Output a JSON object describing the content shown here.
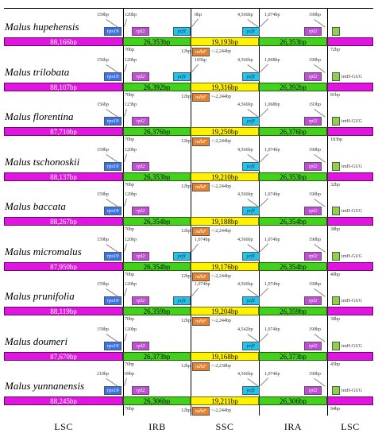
{
  "regions": [
    "LSC",
    "IRB",
    "SSC",
    "IRA",
    "LSC"
  ],
  "colors": {
    "lsc": "#e016e0",
    "ir": "#44d11b",
    "ssc": "#fff200",
    "rps19": "#3b74e8",
    "rpl2": "#c24ed8",
    "ycf1": "#1fc4f0",
    "ndhF": "#e8812b",
    "trnH": "#8fd14a"
  },
  "species": [
    {
      "name": "Malus hupehensis",
      "lsc": "88,166bp",
      "irb": "26,353bp",
      "ssc": "19,193bp",
      "ira": "26,353bp",
      "top_labels": {
        "rps19": "159bp",
        "rpl2_left": "120bp",
        "ycf1_left": "0bp",
        "ycf1_right": "4,566bp",
        "ycf1_ira": "1,074bp",
        "rpl2_right": "190bp"
      },
      "bottom_labels": {
        "irb": "70bp",
        "ndhF_gap": "12bp",
        "ndhF": "2,244bp",
        "trnH": "72bp"
      },
      "genes": {
        "rps19": "rps19",
        "rpl2": "rpl2",
        "ycf1_ps": "ycf1",
        "ycf1": "ycf1",
        "ndhF": "ndhF",
        "trnH": ""
      }
    },
    {
      "name": "Malus trilobata",
      "lsc": "88,107bp",
      "irb": "26,392bp",
      "ssc": "19,316bp",
      "ira": "26,392bp",
      "top_labels": {
        "rps19": "156bp",
        "rpl2_left": "120bp",
        "ycf1_left": "105bp",
        "ycf1_right": "4,566bp",
        "ycf1_ira": "1,068bp",
        "rpl2_right": "190bp"
      },
      "bottom_labels": {
        "irb": "70bp",
        "ndhF_gap": "12bp",
        "ndhF": "2,244bp",
        "trnH": "81bp"
      },
      "genes": {
        "rps19": "rps19",
        "rpl2": "rpl2",
        "ycf1_ps": "ycf1",
        "ycf1": "ycf1",
        "ndhF": "ndhF",
        "trnH": "trnH-GUG"
      }
    },
    {
      "name": "Malus florentina",
      "lsc": "87,710bp",
      "irb": "26,376bp",
      "ssc": "19,250bp",
      "ira": "26,376bp",
      "top_labels": {
        "rps19": "156bp",
        "rpl2_left": "123bp",
        "ycf1_left": "",
        "ycf1_right": "4,566bp",
        "ycf1_ira": "1,068bp",
        "rpl2_right": "193bp"
      },
      "bottom_labels": {
        "irb": "70bp",
        "ndhF_gap": "12bp",
        "ndhF": "2,244bp",
        "trnH": "183bp"
      },
      "genes": {
        "rps19": "rps19",
        "rpl2": "rpl2",
        "ycf1_ps": "",
        "ycf1": "ycf1",
        "ndhF": "ndhF",
        "trnH": "trnH-GUG"
      }
    },
    {
      "name": "Malus tschonoskii",
      "lsc": "88,137bp",
      "irb": "26,353bp",
      "ssc": "19,210bp",
      "ira": "26,353bp",
      "top_labels": {
        "rps19": "159bp",
        "rpl2_left": "120bp",
        "ycf1_left": "",
        "ycf1_right": "4,566bp",
        "ycf1_ira": "1,074bp",
        "rpl2_right": "190bp"
      },
      "bottom_labels": {
        "irb": "70bp",
        "ndhF_gap": "12bp",
        "ndhF": "2,244bp",
        "trnH": "32bp"
      },
      "genes": {
        "rps19": "rps19",
        "rpl2": "rpl2",
        "ycf1_ps": "",
        "ycf1": "ycf1",
        "ndhF": "ndhF",
        "trnH": "trnH-GUG"
      }
    },
    {
      "name": "Malus baccata",
      "lsc": "88,267bp",
      "irb": "26,354bp",
      "ssc": "19,188bp",
      "ira": "26,354bp",
      "top_labels": {
        "rps19": "159bp",
        "rpl2_left": "120bp",
        "ycf1_left": "",
        "ycf1_right": "4,566bp",
        "ycf1_ira": "1,074bp",
        "rpl2_right": "190bp"
      },
      "bottom_labels": {
        "irb": "70bp",
        "ndhF_gap": "12bp",
        "ndhF": "2,244bp",
        "trnH": "38bp"
      },
      "genes": {
        "rps19": "rps19",
        "rpl2": "rpl2",
        "ycf1_ps": "",
        "ycf1": "ycf1",
        "ndhF": "ndhF",
        "trnH": "trnH-GUG"
      }
    },
    {
      "name": "Malus micromalus",
      "lsc": "87,950bp",
      "irb": "26,354bp",
      "ssc": "19,176bp",
      "ira": "26,354bp",
      "top_labels": {
        "rps19": "159bp",
        "rpl2_left": "120bp",
        "ycf1_left": "1,074bp",
        "ycf1_right": "4,566bp",
        "ycf1_ira": "1,074bp",
        "rpl2_right": "190bp"
      },
      "bottom_labels": {
        "irb": "70bp",
        "ndhF_gap": "12bp",
        "ndhF": "2,244bp",
        "trnH": "40bp"
      },
      "genes": {
        "rps19": "rps19",
        "rpl2": "rpl2",
        "ycf1_ps": "ycf1",
        "ycf1": "ycf1",
        "ndhF": "ndhF",
        "trnH": "trnH-GUG"
      }
    },
    {
      "name": "Malus prunifolia",
      "lsc": "88,119bp",
      "irb": "26,359bp",
      "ssc": "19,204bp",
      "ira": "26,359bp",
      "top_labels": {
        "rps19": "159bp",
        "rpl2_left": "120bp",
        "ycf1_left": "1,074bp",
        "ycf1_right": "4,566bp",
        "ycf1_ira": "1,074bp",
        "rpl2_right": "190bp"
      },
      "bottom_labels": {
        "irb": "70bp",
        "ndhF_gap": "12bp",
        "ndhF": "2,244bp",
        "trnH": "38bp"
      },
      "genes": {
        "rps19": "rps19",
        "rpl2": "rpl2",
        "ycf1_ps": "ycf1",
        "ycf1": "ycf1",
        "ndhF": "ndhF",
        "trnH": "trnH-GUG"
      }
    },
    {
      "name": "Malus doumeri",
      "lsc": "87,670bp",
      "irb": "26,373bp",
      "ssc": "19,168bp",
      "ira": "26,373bp",
      "top_labels": {
        "rps19": "159bp",
        "rpl2_left": "120bp",
        "ycf1_left": "",
        "ycf1_right": "4,542bp",
        "ycf1_ira": "1,074bp",
        "rpl2_right": "190bp"
      },
      "bottom_labels": {
        "irb": "70bp",
        "ndhF_gap": "12bp",
        "ndhF": "2,238bp",
        "trnH": "45bp"
      },
      "genes": {
        "rps19": "rps19",
        "rpl2": "rpl2",
        "ycf1_ps": "",
        "ycf1": "ycf1",
        "ndhF": "ndhF",
        "trnH": "trnH-GUG"
      }
    },
    {
      "name": "Malus yunnanensis",
      "lsc": "88,245bp",
      "irb": "26,306bp",
      "ssc": "19,211bp",
      "ira": "26,306bp",
      "top_labels": {
        "rps19": "210bp",
        "rpl2_left": "69bp",
        "ycf1_left": "",
        "ycf1_right": "4,566bp",
        "ycf1_ira": "1,074bp",
        "rpl2_right": "190bp"
      },
      "bottom_labels": {
        "irb": "70bp",
        "ndhF_gap": "12bp",
        "ndhF": "2,244bp",
        "trnH": "94bp"
      },
      "genes": {
        "rps19": "rps19",
        "rpl2": "rpl2",
        "ycf1_ps": "",
        "ycf1": "ycf1",
        "ndhF": "ndhF",
        "trnH": "trnH-GUG"
      }
    }
  ]
}
